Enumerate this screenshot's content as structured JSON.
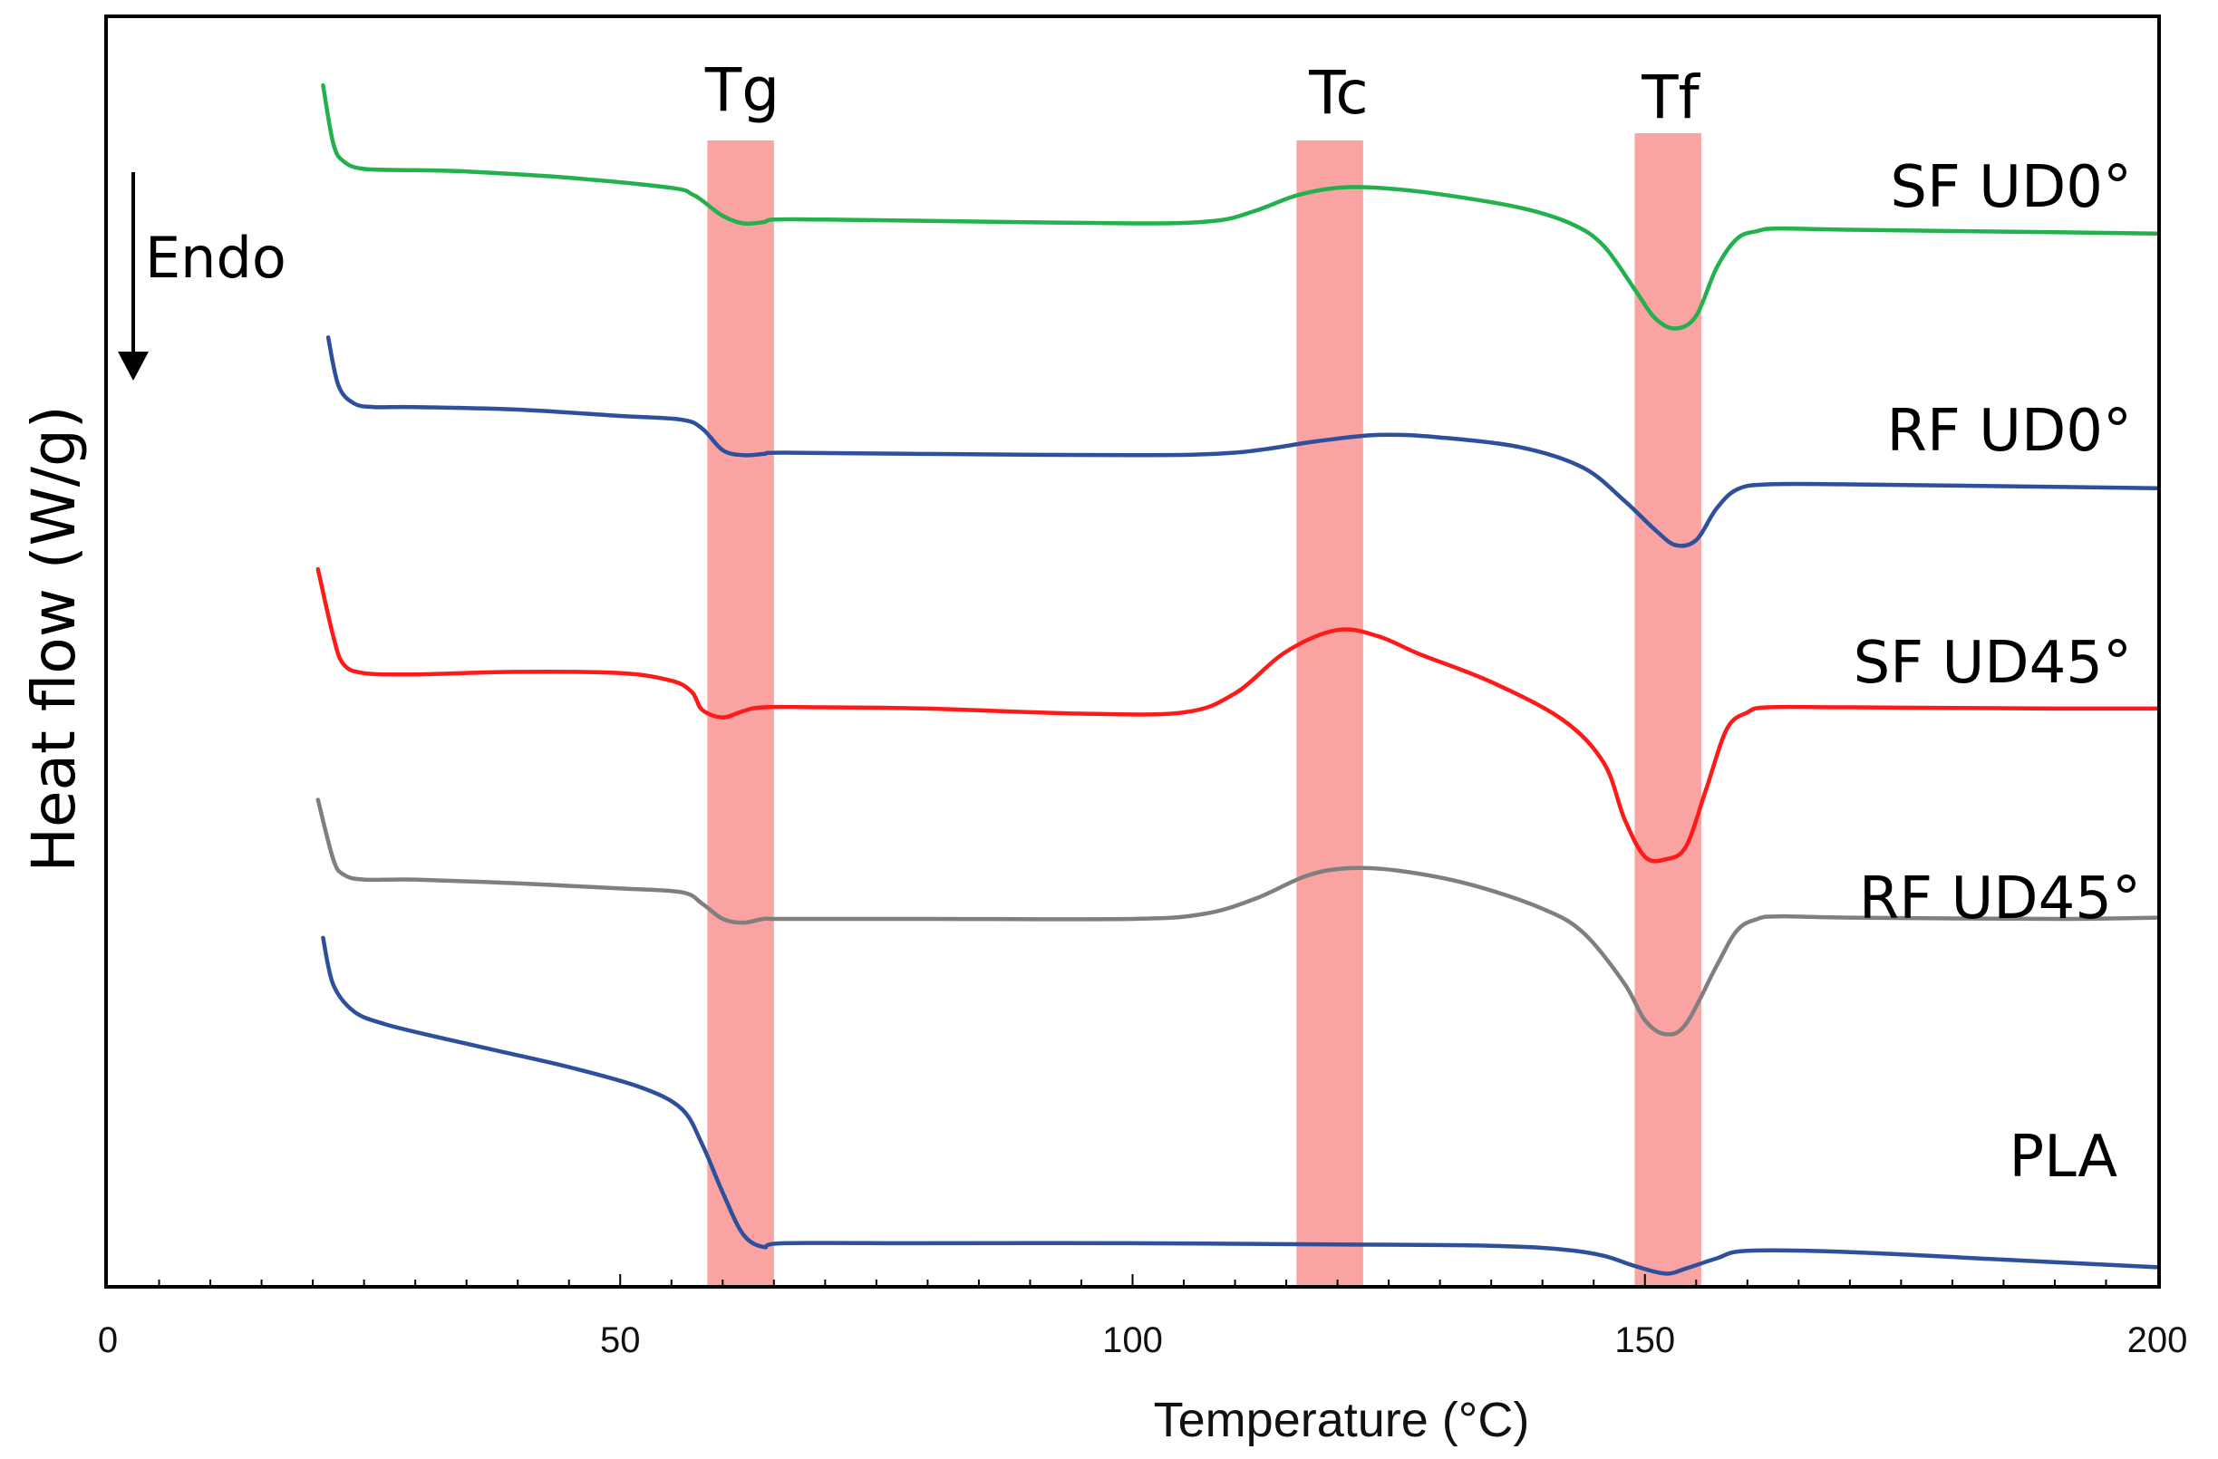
{
  "chart_data": {
    "type": "line",
    "xlabel": "Temperature (°C)",
    "ylabel": "Heat flow (W/g)",
    "xlim": [
      0,
      200
    ],
    "ylim": [
      0,
      100
    ],
    "x_ticks": [
      0,
      50,
      100,
      150,
      200
    ],
    "annotation": {
      "label": "Endo",
      "direction": "down"
    },
    "bands": [
      {
        "label": "Tg",
        "from": 58.5,
        "to": 65,
        "color": "#f9a3a3"
      },
      {
        "label": "Tc",
        "from": 116,
        "to": 122.5,
        "color": "#f9a3a3"
      },
      {
        "label": "Tf",
        "from": 149,
        "to": 155.5,
        "color": "#f9a3a3"
      }
    ],
    "series": [
      {
        "name": "SF UD0°",
        "color": "#22b14c",
        "points": [
          [
            21,
            94.7
          ],
          [
            22,
            90.1
          ],
          [
            23,
            88.7
          ],
          [
            25,
            88.1
          ],
          [
            30,
            88.0
          ],
          [
            35,
            87.9
          ],
          [
            45,
            87.4
          ],
          [
            55,
            86.6
          ],
          [
            57,
            86.1
          ],
          [
            58,
            85.6
          ],
          [
            60,
            84.4
          ],
          [
            62,
            83.8
          ],
          [
            64,
            83.9
          ],
          [
            65,
            84.1
          ],
          [
            70,
            84.1
          ],
          [
            80,
            84.0
          ],
          [
            100,
            83.8
          ],
          [
            108,
            84.0
          ],
          [
            112,
            84.8
          ],
          [
            116,
            86.0
          ],
          [
            120,
            86.6
          ],
          [
            124,
            86.6
          ],
          [
            130,
            86.1
          ],
          [
            138,
            85.0
          ],
          [
            143,
            83.7
          ],
          [
            146,
            82.0
          ],
          [
            149,
            78.6
          ],
          [
            151,
            76.3
          ],
          [
            153,
            75.5
          ],
          [
            155,
            76.5
          ],
          [
            157,
            80.3
          ],
          [
            159,
            82.6
          ],
          [
            161,
            83.2
          ],
          [
            163,
            83.4
          ],
          [
            170,
            83.3
          ],
          [
            190,
            83.1
          ],
          [
            200,
            83.0
          ]
        ]
      },
      {
        "name": "RF UD0°",
        "color": "#2e4f9b",
        "points": [
          [
            21.5,
            74.8
          ],
          [
            22.5,
            71.0
          ],
          [
            24,
            69.6
          ],
          [
            26,
            69.3
          ],
          [
            30,
            69.3
          ],
          [
            40,
            69.1
          ],
          [
            50,
            68.6
          ],
          [
            56,
            68.3
          ],
          [
            58,
            67.6
          ],
          [
            60,
            65.9
          ],
          [
            62,
            65.5
          ],
          [
            64,
            65.6
          ],
          [
            66,
            65.7
          ],
          [
            80,
            65.6
          ],
          [
            100,
            65.5
          ],
          [
            110,
            65.7
          ],
          [
            118,
            66.6
          ],
          [
            124,
            67.1
          ],
          [
            130,
            66.9
          ],
          [
            138,
            66.1
          ],
          [
            144,
            64.5
          ],
          [
            148,
            61.9
          ],
          [
            151,
            59.6
          ],
          [
            153,
            58.4
          ],
          [
            155,
            58.8
          ],
          [
            157,
            61.3
          ],
          [
            159,
            62.8
          ],
          [
            162,
            63.2
          ],
          [
            170,
            63.2
          ],
          [
            190,
            63.0
          ],
          [
            200,
            62.9
          ]
        ]
      },
      {
        "name": "SF UD45°",
        "color": "#ff1a1a",
        "points": [
          [
            20.5,
            56.5
          ],
          [
            22,
            51.2
          ],
          [
            23,
            49.0
          ],
          [
            25,
            48.3
          ],
          [
            30,
            48.2
          ],
          [
            40,
            48.4
          ],
          [
            50,
            48.3
          ],
          [
            55,
            47.7
          ],
          [
            57,
            46.8
          ],
          [
            58,
            45.4
          ],
          [
            60,
            44.8
          ],
          [
            62,
            45.3
          ],
          [
            64,
            45.6
          ],
          [
            70,
            45.6
          ],
          [
            80,
            45.5
          ],
          [
            95,
            45.1
          ],
          [
            105,
            45.2
          ],
          [
            110,
            46.7
          ],
          [
            115,
            50.0
          ],
          [
            120,
            51.7
          ],
          [
            124,
            51.2
          ],
          [
            128,
            49.8
          ],
          [
            135,
            47.6
          ],
          [
            142,
            44.6
          ],
          [
            146,
            41.2
          ],
          [
            148,
            36.8
          ],
          [
            150,
            33.8
          ],
          [
            152,
            33.6
          ],
          [
            154,
            34.6
          ],
          [
            156,
            39.2
          ],
          [
            158,
            43.9
          ],
          [
            160,
            45.2
          ],
          [
            162,
            45.6
          ],
          [
            170,
            45.6
          ],
          [
            190,
            45.5
          ],
          [
            200,
            45.5
          ]
        ]
      },
      {
        "name": "RF UD45°",
        "color": "#7f7f7f",
        "points": [
          [
            20.5,
            38.3
          ],
          [
            22,
            33.6
          ],
          [
            23,
            32.4
          ],
          [
            25,
            32.0
          ],
          [
            30,
            32.0
          ],
          [
            40,
            31.7
          ],
          [
            50,
            31.3
          ],
          [
            56,
            31.0
          ],
          [
            58,
            30.1
          ],
          [
            60,
            28.9
          ],
          [
            62,
            28.6
          ],
          [
            64,
            28.9
          ],
          [
            66,
            28.9
          ],
          [
            80,
            28.9
          ],
          [
            100,
            28.9
          ],
          [
            107,
            29.3
          ],
          [
            112,
            30.5
          ],
          [
            117,
            32.3
          ],
          [
            121,
            32.9
          ],
          [
            126,
            32.7
          ],
          [
            133,
            31.6
          ],
          [
            140,
            29.7
          ],
          [
            144,
            27.8
          ],
          [
            148,
            23.8
          ],
          [
            150,
            20.9
          ],
          [
            152,
            19.8
          ],
          [
            154,
            20.6
          ],
          [
            157,
            25.2
          ],
          [
            159,
            28.0
          ],
          [
            161,
            28.9
          ],
          [
            163,
            29.1
          ],
          [
            170,
            29.0
          ],
          [
            190,
            28.9
          ],
          [
            200,
            29.0
          ]
        ]
      },
      {
        "name": "PLA",
        "color": "#2e4f9b",
        "points": [
          [
            21,
            27.4
          ],
          [
            22,
            23.7
          ],
          [
            24,
            21.6
          ],
          [
            27,
            20.6
          ],
          [
            32,
            19.6
          ],
          [
            38,
            18.5
          ],
          [
            45,
            17.2
          ],
          [
            52,
            15.6
          ],
          [
            56,
            13.9
          ],
          [
            58,
            11.1
          ],
          [
            60,
            7.3
          ],
          [
            62,
            4.0
          ],
          [
            64,
            3.0
          ],
          [
            66,
            3.3
          ],
          [
            80,
            3.3
          ],
          [
            100,
            3.3
          ],
          [
            120,
            3.2
          ],
          [
            135,
            3.1
          ],
          [
            142,
            2.8
          ],
          [
            146,
            2.3
          ],
          [
            149,
            1.5
          ],
          [
            152,
            0.9
          ],
          [
            154,
            1.3
          ],
          [
            157,
            2.1
          ],
          [
            160,
            2.7
          ],
          [
            170,
            2.6
          ],
          [
            185,
            2.0
          ],
          [
            200,
            1.4
          ]
        ]
      }
    ]
  }
}
